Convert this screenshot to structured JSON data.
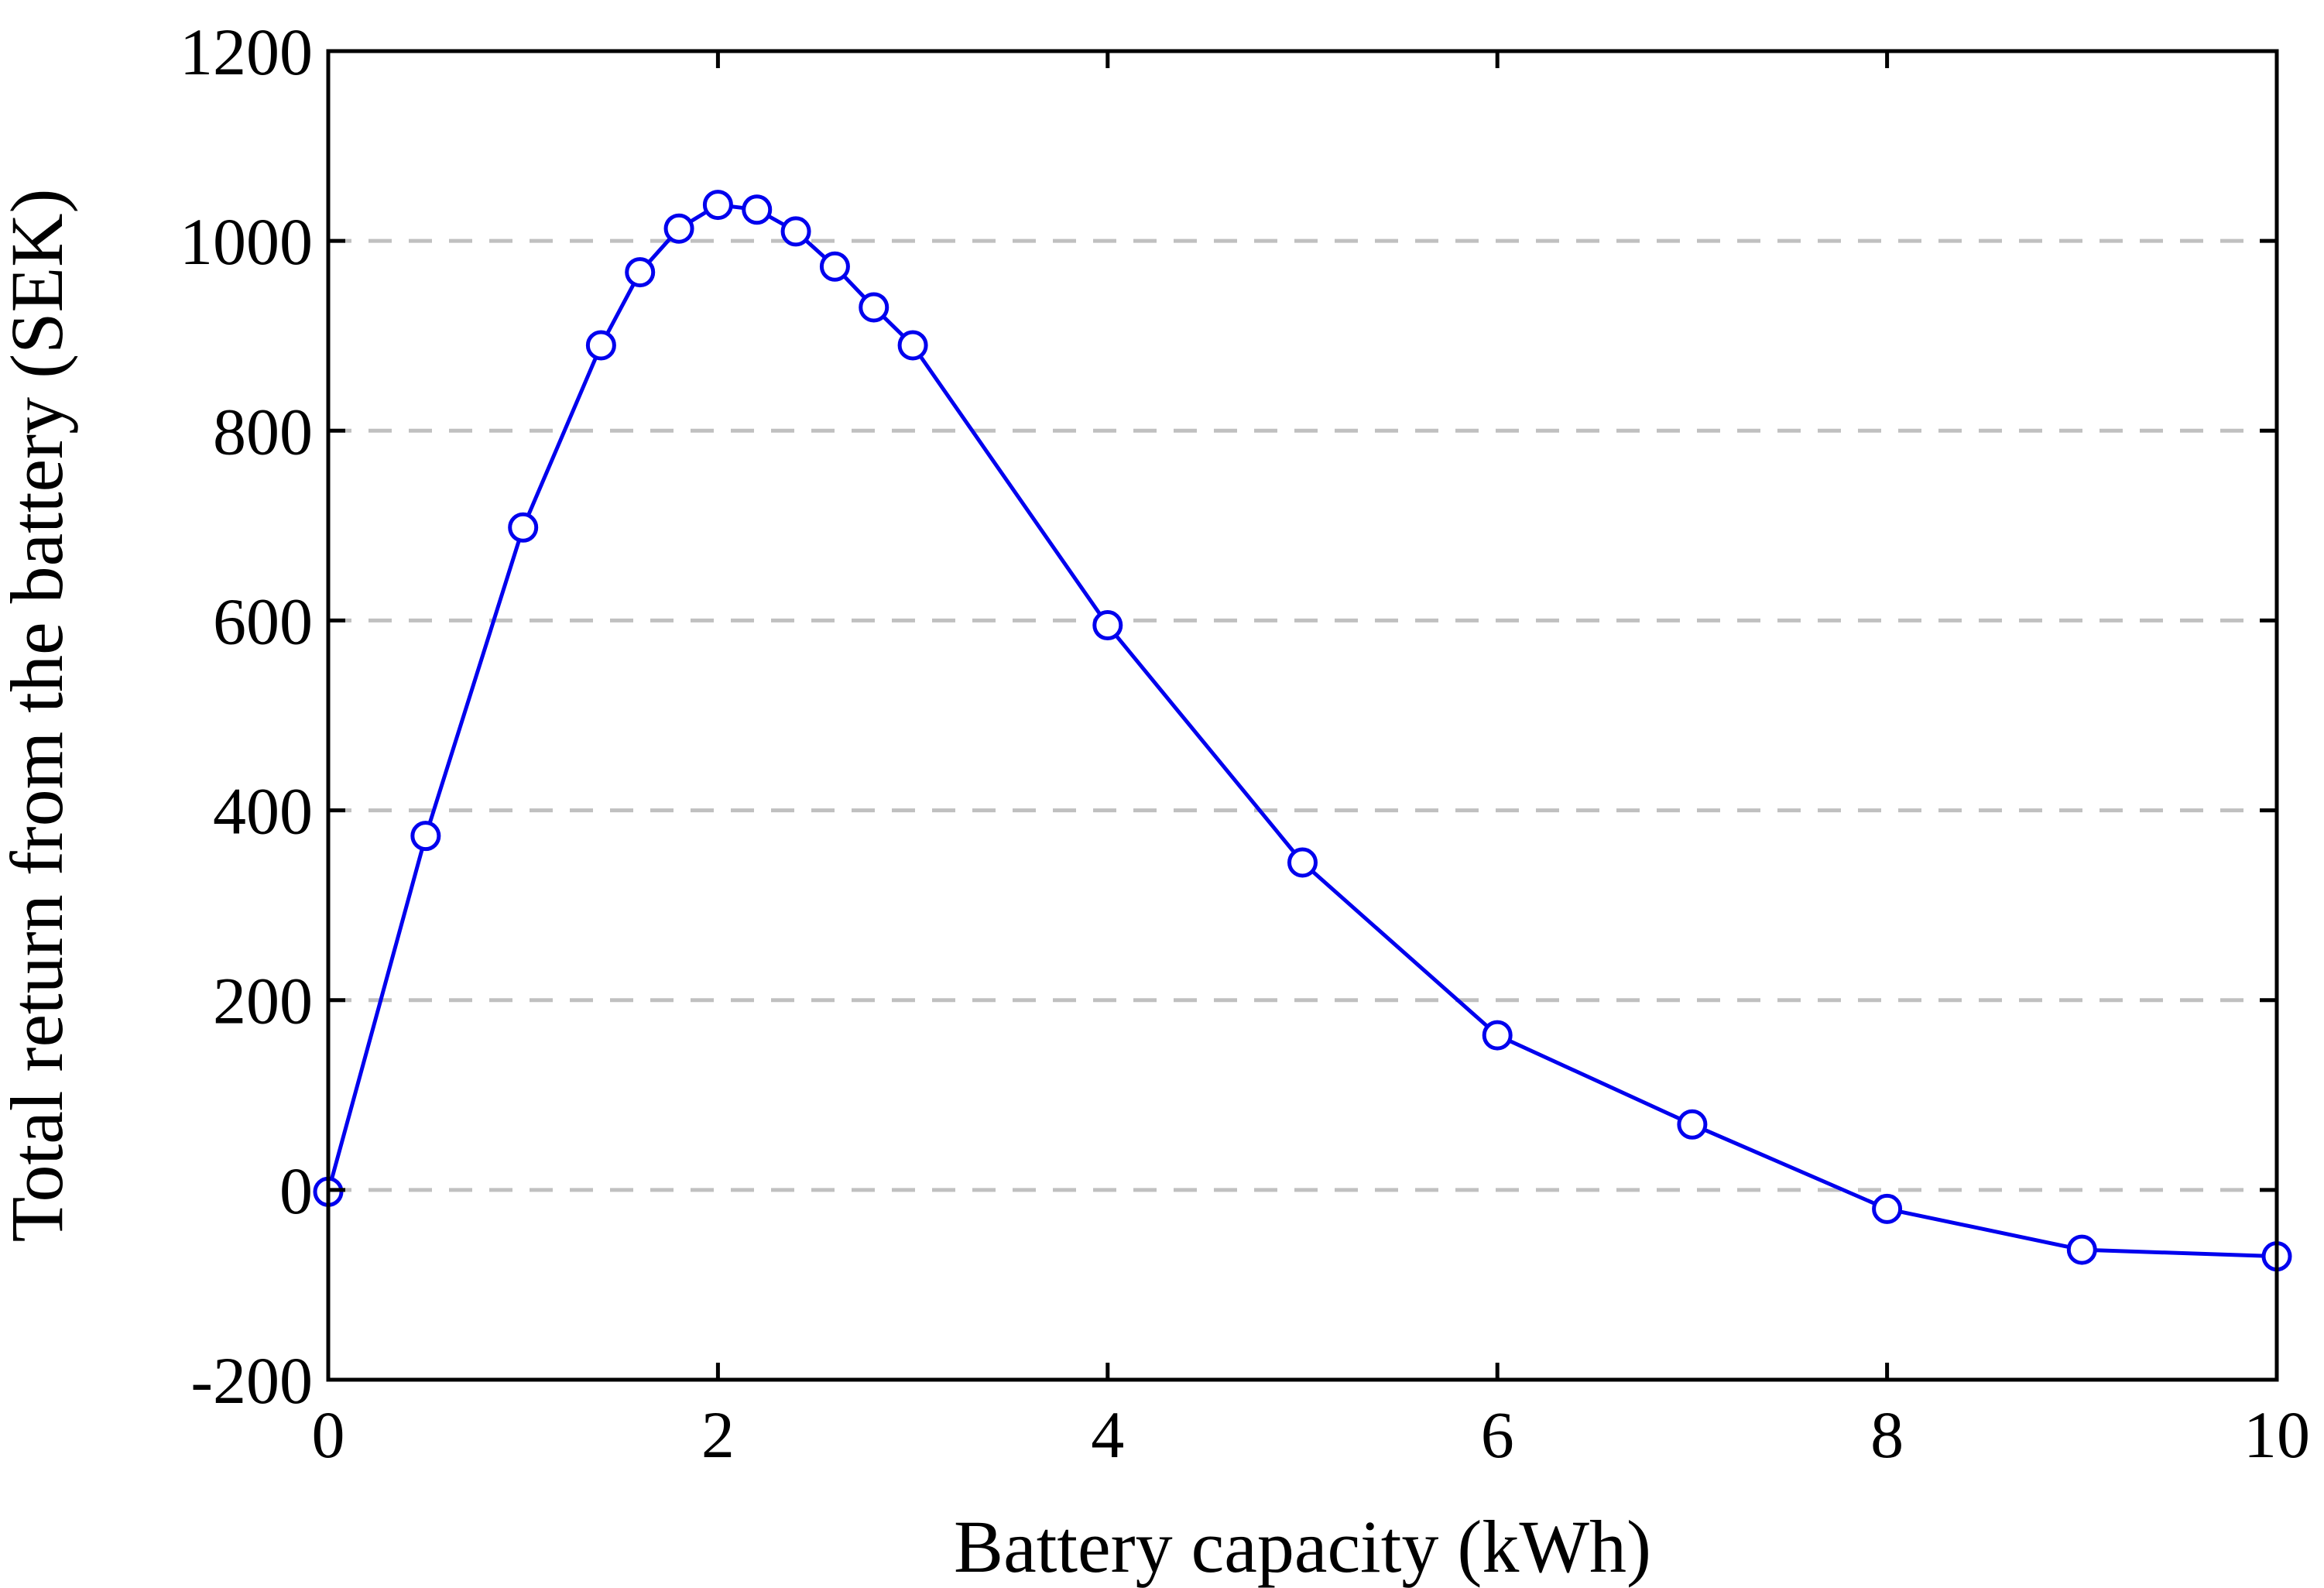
{
  "chart_data": {
    "type": "line",
    "title": "",
    "xlabel": "Battery capacity (kWh)",
    "ylabel": "Total return from the battery (SEK)",
    "xlim": [
      0,
      10
    ],
    "ylim": [
      -200,
      1200
    ],
    "xticks": [
      0,
      2,
      4,
      6,
      8,
      10
    ],
    "yticks": [
      -200,
      0,
      200,
      400,
      600,
      800,
      1000,
      1200
    ],
    "xtick_labels": [
      "0",
      "2",
      "4",
      "6",
      "8",
      "10"
    ],
    "ytick_labels": [
      "-200",
      "0",
      "200",
      "400",
      "600",
      "800",
      "1000",
      "1200"
    ],
    "grid": "horizontal dashed",
    "legend": "none",
    "series": [
      {
        "color": "#0000ee",
        "marker": "open-circle",
        "x": [
          0,
          0.5,
          1.0,
          1.4,
          1.6,
          1.8,
          2.0,
          2.2,
          2.4,
          2.6,
          2.8,
          3.0,
          4.0,
          5.0,
          6.0,
          7.0,
          8.0,
          9.0,
          10.0
        ],
        "y": [
          -2,
          373,
          698,
          890,
          967,
          1013,
          1038,
          1033,
          1010,
          973,
          930,
          890,
          595,
          345,
          163,
          69,
          -20,
          -63,
          -70
        ]
      }
    ]
  }
}
